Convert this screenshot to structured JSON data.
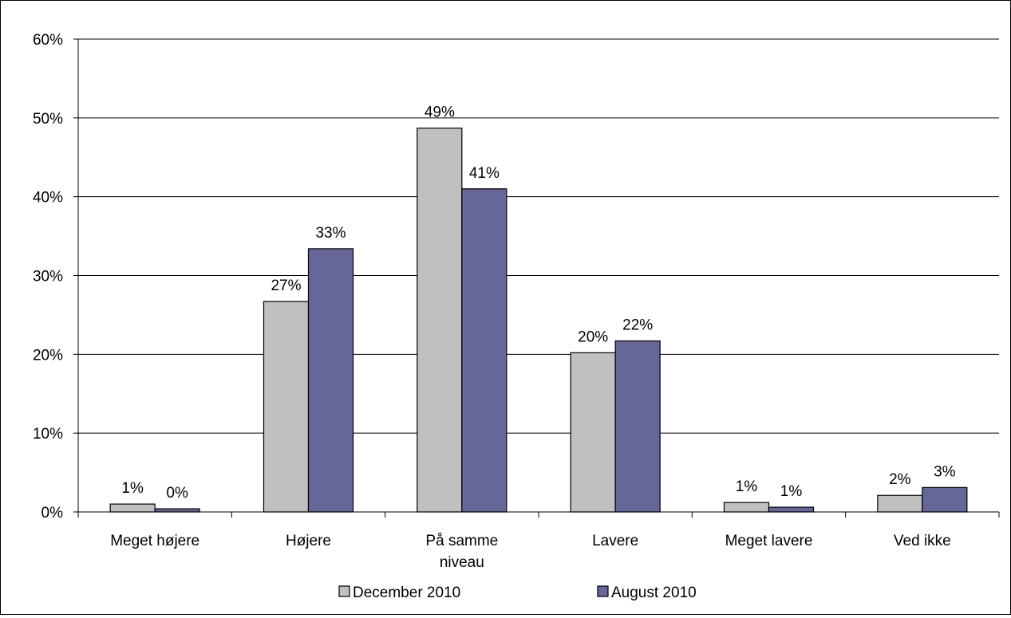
{
  "chart_data": {
    "type": "bar",
    "title": "",
    "xlabel": "",
    "ylabel": "",
    "ylim": [
      0,
      60
    ],
    "yticks": [
      0,
      10,
      20,
      30,
      40,
      50,
      60
    ],
    "ytick_labels": [
      "0%",
      "10%",
      "20%",
      "30%",
      "40%",
      "50%",
      "60%"
    ],
    "grid": true,
    "legend_position": "bottom",
    "categories": [
      [
        "Meget højere"
      ],
      [
        "Højere"
      ],
      [
        "På samme",
        "niveau"
      ],
      [
        "Lavere"
      ],
      [
        "Meget lavere"
      ],
      [
        "Ved ikke"
      ]
    ],
    "series": [
      {
        "name": "December 2010",
        "color": "#c0c0c0",
        "values": [
          1,
          26.7,
          48.7,
          20.2,
          1.2,
          2.1
        ],
        "labels": [
          "1%",
          "27%",
          "49%",
          "20%",
          "1%",
          "2%"
        ]
      },
      {
        "name": "August 2010",
        "color": "#666699",
        "values": [
          0.4,
          33.4,
          41.0,
          21.7,
          0.6,
          3.1
        ],
        "labels": [
          "0%",
          "33%",
          "41%",
          "22%",
          "1%",
          "3%"
        ]
      }
    ]
  }
}
